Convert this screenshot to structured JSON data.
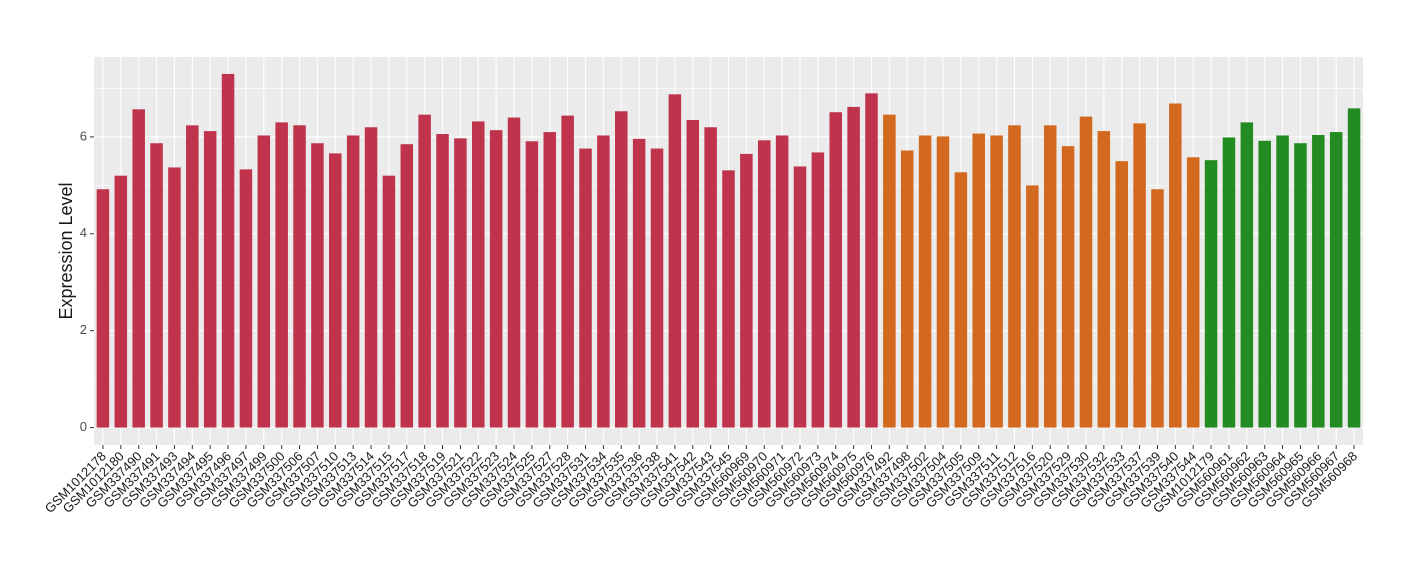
{
  "chart_data": {
    "type": "bar",
    "y_label": "Expression Level",
    "categories": [
      "GSM1012178",
      "GSM1012180",
      "GSM337490",
      "GSM337491",
      "GSM337493",
      "GSM337494",
      "GSM337495",
      "GSM337496",
      "GSM337497",
      "GSM337499",
      "GSM337500",
      "GSM337506",
      "GSM337507",
      "GSM337510",
      "GSM337513",
      "GSM337514",
      "GSM337515",
      "GSM337517",
      "GSM337518",
      "GSM337519",
      "GSM337521",
      "GSM337522",
      "GSM337523",
      "GSM337524",
      "GSM337525",
      "GSM337527",
      "GSM337528",
      "GSM337531",
      "GSM337534",
      "GSM337535",
      "GSM337536",
      "GSM337538",
      "GSM337541",
      "GSM337542",
      "GSM337543",
      "GSM337545",
      "GSM560969",
      "GSM560970",
      "GSM560971",
      "GSM560972",
      "GSM560973",
      "GSM560974",
      "GSM560975",
      "GSM560976",
      "GSM337492",
      "GSM337498",
      "GSM337502",
      "GSM337504",
      "GSM337505",
      "GSM337509",
      "GSM337511",
      "GSM337512",
      "GSM337516",
      "GSM337520",
      "GSM337529",
      "GSM337530",
      "GSM337532",
      "GSM337533",
      "GSM337537",
      "GSM337539",
      "GSM337540",
      "GSM337544",
      "GSM1012179",
      "GSM560961",
      "GSM560962",
      "GSM560963",
      "GSM560964",
      "GSM560965",
      "GSM560966",
      "GSM560967",
      "GSM560968"
    ],
    "values": [
      4.92,
      5.2,
      6.57,
      5.87,
      5.37,
      6.24,
      6.12,
      7.3,
      5.33,
      6.03,
      6.3,
      6.24,
      5.87,
      5.66,
      6.03,
      6.2,
      5.2,
      5.85,
      6.46,
      6.06,
      5.97,
      6.32,
      6.14,
      6.4,
      5.91,
      6.1,
      6.44,
      5.76,
      6.03,
      6.53,
      5.96,
      5.76,
      6.88,
      6.35,
      6.2,
      5.31,
      5.65,
      5.93,
      6.03,
      5.39,
      5.68,
      6.51,
      6.62,
      6.9,
      6.46,
      5.72,
      6.03,
      6.01,
      5.27,
      6.07,
      6.03,
      6.24,
      5.0,
      6.24,
      5.81,
      6.42,
      6.12,
      5.5,
      6.28,
      4.92,
      6.69,
      5.58,
      5.52,
      5.99,
      6.3,
      5.92,
      6.03,
      5.87,
      6.04,
      6.1,
      6.59
    ],
    "colors": [
      "#c0334d",
      "#c0334d",
      "#c0334d",
      "#c0334d",
      "#c0334d",
      "#c0334d",
      "#c0334d",
      "#c0334d",
      "#c0334d",
      "#c0334d",
      "#c0334d",
      "#c0334d",
      "#c0334d",
      "#c0334d",
      "#c0334d",
      "#c0334d",
      "#c0334d",
      "#c0334d",
      "#c0334d",
      "#c0334d",
      "#c0334d",
      "#c0334d",
      "#c0334d",
      "#c0334d",
      "#c0334d",
      "#c0334d",
      "#c0334d",
      "#c0334d",
      "#c0334d",
      "#c0334d",
      "#c0334d",
      "#c0334d",
      "#c0334d",
      "#c0334d",
      "#c0334d",
      "#c0334d",
      "#c0334d",
      "#c0334d",
      "#c0334d",
      "#c0334d",
      "#c0334d",
      "#c0334d",
      "#c0334d",
      "#c0334d",
      "#d2691e",
      "#d2691e",
      "#d2691e",
      "#d2691e",
      "#d2691e",
      "#d2691e",
      "#d2691e",
      "#d2691e",
      "#d2691e",
      "#d2691e",
      "#d2691e",
      "#d2691e",
      "#d2691e",
      "#d2691e",
      "#d2691e",
      "#d2691e",
      "#d2691e",
      "#d2691e",
      "#228b22",
      "#228b22",
      "#228b22",
      "#228b22",
      "#228b22",
      "#228b22",
      "#228b22",
      "#228b22",
      "#228b22"
    ],
    "ylim": [
      -0.36,
      7.65
    ],
    "yticks": [
      0,
      2,
      4,
      6
    ],
    "yminor": [
      1,
      3,
      5,
      7
    ],
    "grid": true
  }
}
